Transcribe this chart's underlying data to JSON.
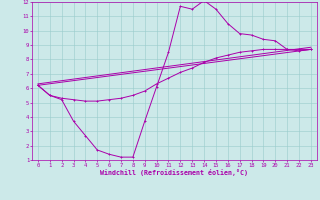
{
  "xlabel": "Windchill (Refroidissement éolien,°C)",
  "xlim": [
    -0.5,
    23.5
  ],
  "ylim": [
    1,
    12
  ],
  "xticks": [
    0,
    1,
    2,
    3,
    4,
    5,
    6,
    7,
    8,
    9,
    10,
    11,
    12,
    13,
    14,
    15,
    16,
    17,
    18,
    19,
    20,
    21,
    22,
    23
  ],
  "yticks": [
    1,
    2,
    3,
    4,
    5,
    6,
    7,
    8,
    9,
    10,
    11,
    12
  ],
  "bg_color": "#cce9e9",
  "line_color": "#aa00aa",
  "grid_color": "#99cccc",
  "line1_x": [
    0,
    1,
    2,
    3,
    4,
    5,
    6,
    7,
    8,
    9,
    10,
    11,
    12,
    13,
    14,
    15,
    16,
    17,
    18,
    19,
    20,
    21,
    22,
    23
  ],
  "line1_y": [
    6.2,
    5.5,
    5.2,
    3.7,
    2.7,
    1.7,
    1.4,
    1.2,
    1.2,
    3.7,
    6.1,
    8.5,
    11.7,
    11.5,
    12.1,
    11.5,
    10.5,
    9.8,
    9.7,
    9.4,
    9.3,
    8.7,
    8.6,
    8.7
  ],
  "line2_x": [
    0,
    1,
    2,
    3,
    4,
    5,
    6,
    7,
    8,
    9,
    10,
    11,
    12,
    13,
    14,
    15,
    16,
    17,
    18,
    19,
    20,
    21,
    22,
    23
  ],
  "line2_y": [
    6.2,
    5.5,
    5.3,
    5.2,
    5.1,
    5.1,
    5.2,
    5.3,
    5.5,
    5.8,
    6.3,
    6.7,
    7.1,
    7.4,
    7.8,
    8.1,
    8.3,
    8.5,
    8.6,
    8.7,
    8.7,
    8.7,
    8.7,
    8.7
  ],
  "line3_x": [
    0,
    23
  ],
  "line3_y": [
    6.2,
    8.7
  ],
  "line4_x": [
    0,
    23
  ],
  "line4_y": [
    6.3,
    8.85
  ]
}
